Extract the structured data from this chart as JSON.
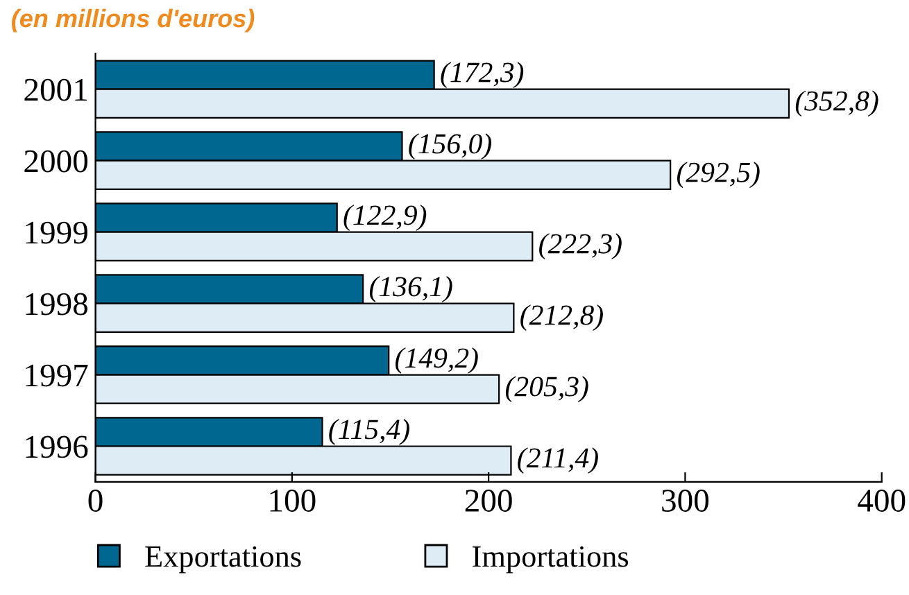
{
  "chart_data": {
    "type": "bar",
    "orientation": "horizontal",
    "subtitle": "(en millions d'euros)",
    "categories": [
      "2001",
      "2000",
      "1999",
      "1998",
      "1997",
      "1996"
    ],
    "series": [
      {
        "name": "Exportations",
        "color": "#006890",
        "values": [
          172.3,
          156.0,
          122.9,
          136.1,
          149.2,
          115.4
        ],
        "value_labels": [
          "(172,3)",
          "(156,0)",
          "(122,9)",
          "(136,1)",
          "(149,2)",
          "(115,4)"
        ]
      },
      {
        "name": "Importations",
        "color": "#deedf5",
        "values": [
          352.8,
          292.5,
          222.3,
          212.8,
          205.3,
          211.4
        ],
        "value_labels": [
          "(352,8)",
          "(292,5)",
          "(222,3)",
          "(212,8)",
          "(205,3)",
          "(211,4)"
        ]
      }
    ],
    "xlim": [
      0,
      400
    ],
    "xticks": [
      0,
      100,
      200,
      300,
      400
    ],
    "grid": false,
    "legend": "bottom"
  }
}
